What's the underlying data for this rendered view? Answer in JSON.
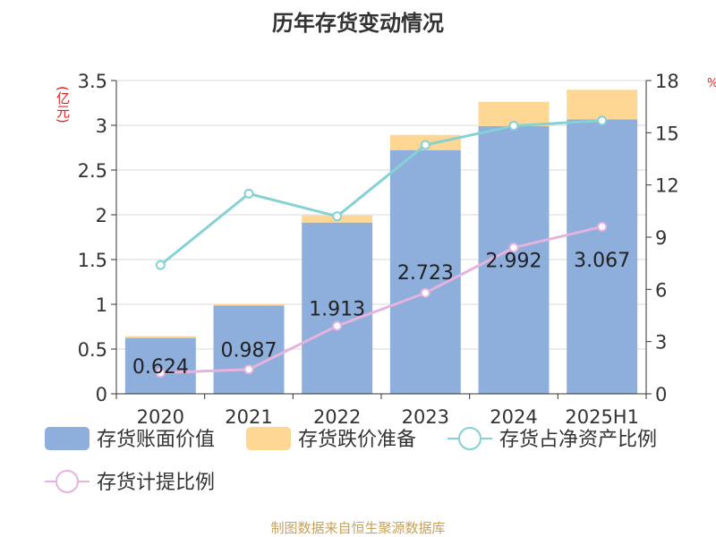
{
  "chart_data": {
    "type": "bar",
    "title": "历年存货变动情况",
    "ylabel_left": "(亿元)",
    "ylabel_right": "%",
    "categories": [
      "2020",
      "2021",
      "2022",
      "2023",
      "2024",
      "2025H1"
    ],
    "ylim_left": [
      0,
      3.5
    ],
    "yticks_left": [
      "0",
      "0.5",
      "1",
      "1.5",
      "2",
      "2.5",
      "3",
      "3.5"
    ],
    "ylim_right": [
      0,
      18
    ],
    "yticks_right": [
      "0",
      "3",
      "6",
      "9",
      "12",
      "15",
      "18"
    ],
    "grid": true,
    "legend_position": "bottom",
    "series": [
      {
        "name": "存货账面价值",
        "kind": "bar",
        "axis": "left",
        "color": "#8eaedb",
        "values": [
          0.624,
          0.987,
          1.913,
          2.723,
          2.992,
          3.067
        ],
        "labels": [
          "0.624",
          "0.987",
          "1.913",
          "2.723",
          "2.992",
          "3.067"
        ]
      },
      {
        "name": "存货跌价准备",
        "kind": "bar",
        "axis": "left",
        "color": "#fdd793",
        "values": [
          0.02,
          0.015,
          0.08,
          0.17,
          0.27,
          0.33
        ]
      },
      {
        "name": "存货占净资产比例",
        "kind": "line",
        "axis": "right",
        "color": "#85d1d3",
        "values": [
          7.4,
          11.5,
          10.2,
          14.3,
          15.4,
          15.7
        ]
      },
      {
        "name": "存货计提比例",
        "kind": "line",
        "axis": "right",
        "color": "#e6b3de",
        "values": [
          1.2,
          1.4,
          3.9,
          5.8,
          8.4,
          9.6
        ]
      }
    ]
  },
  "source": "制图数据来自恒生聚源数据库"
}
